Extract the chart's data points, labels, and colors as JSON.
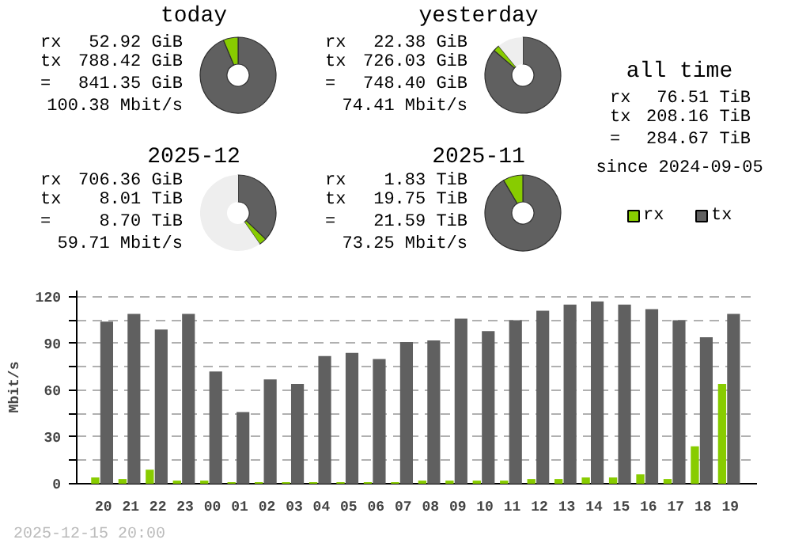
{
  "chart_data": [
    {
      "type": "donut",
      "title": "today",
      "categories": [
        null,
        null
      ],
      "values": [
        93.71,
        6.29
      ],
      "colors": [
        "#606060",
        "#88cc00"
      ],
      "annotations": [
        "rx",
        "52.92 GiB",
        "tx",
        "788.42 GiB",
        "=",
        "841.35 GiB",
        "100.38 Mbit/s"
      ]
    },
    {
      "type": "donut",
      "title": "yesterday",
      "categories": [
        null,
        null,
        null
      ],
      "values": [
        86.29,
        2.66,
        11.05
      ],
      "colors": [
        "#606060",
        "#88cc00",
        "#eeeeee"
      ],
      "annotations": [
        "rx",
        "22.38 GiB",
        "tx",
        "726.03 GiB",
        "=",
        "748.40 GiB",
        "74.41 Mbit/s"
      ]
    },
    {
      "type": "other",
      "title": "all time",
      "annotations": [
        "rx",
        "76.51 TiB",
        "tx",
        "208.16 TiB",
        "=",
        "284.67 TiB",
        "since 2024-09-05"
      ]
    },
    {
      "type": "donut",
      "title": "2025-12",
      "categories": [
        null,
        null,
        null
      ],
      "values": [
        37.1,
        3.2,
        59.7
      ],
      "colors": [
        "#606060",
        "#88cc00",
        "#eeeeee"
      ],
      "annotations": [
        "rx",
        "706.36 GiB",
        "tx",
        "8.01 TiB",
        "=",
        "8.70 TiB",
        "59.71 Mbit/s"
      ]
    },
    {
      "type": "donut",
      "title": "2025-11",
      "categories": [
        null,
        null
      ],
      "values": [
        91.52,
        8.48
      ],
      "colors": [
        "#606060",
        "#88cc00"
      ],
      "annotations": [
        "rx",
        "1.83 TiB",
        "tx",
        "19.75 TiB",
        "=",
        "21.59 TiB",
        "73.25 Mbit/s"
      ]
    },
    {
      "type": "bar",
      "ylabel": "Mbit/s",
      "categories": [
        "20",
        "21",
        "22",
        "23",
        "00",
        "01",
        "02",
        "03",
        "04",
        "05",
        "06",
        "07",
        "08",
        "09",
        "10",
        "11",
        "12",
        "13",
        "14",
        "15",
        "16",
        "17",
        "18",
        "19"
      ],
      "series": [
        {
          "name": "rx",
          "color": "#88cc00",
          "values": [
            4,
            3,
            9,
            2,
            2,
            1,
            1,
            1,
            1,
            1,
            1,
            1,
            2,
            2,
            2,
            2,
            3,
            3,
            4,
            4,
            6,
            3,
            24,
            64
          ]
        },
        {
          "name": "tx",
          "color": "#606060",
          "values": [
            104,
            109,
            99,
            109,
            72,
            46,
            67,
            64,
            82,
            84,
            80,
            91,
            92,
            106,
            98,
            105,
            111,
            115,
            117,
            115,
            112,
            105,
            94,
            109
          ]
        }
      ],
      "ylim": [
        0,
        124
      ],
      "yticks": [
        0,
        {
          "value": 15,
          "label": null
        },
        30,
        {
          "value": 45,
          "label": null
        },
        60,
        {
          "value": 75,
          "label": null
        },
        90,
        {
          "value": 105,
          "label": null
        },
        120
      ],
      "grid": "y",
      "legend": "top right",
      "annotations": [
        "2025-12-15 20:00"
      ]
    }
  ]
}
